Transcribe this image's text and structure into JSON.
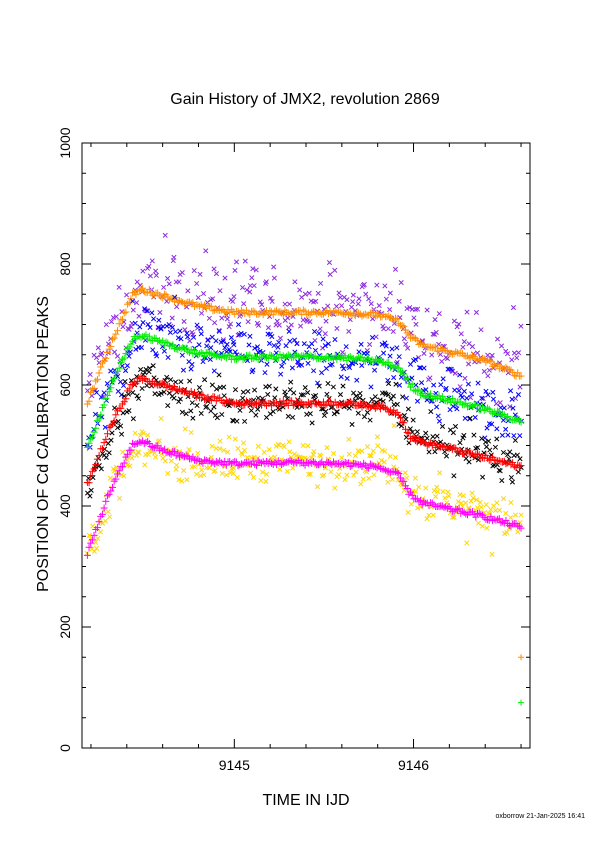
{
  "chart_data": {
    "type": "scatter",
    "title": "Gain History of JMX2, revolution 2869",
    "xlabel": "TIME IN IJD",
    "ylabel": "POSITION OF Cd CALIBRATION PEAKS",
    "xlim": [
      9144.15,
      9146.65
    ],
    "ylim": [
      0,
      1000
    ],
    "xticks": [
      "9145",
      "9146"
    ],
    "xtick_values": [
      9145,
      9146
    ],
    "yticks": [
      "0",
      "200",
      "400",
      "600",
      "800",
      "1000"
    ],
    "ytick_values": [
      0,
      200,
      400,
      600,
      800,
      1000
    ],
    "grid": false,
    "legend": "none",
    "series": [
      {
        "color": "#8a2be2",
        "marker": "x",
        "scatter": 62,
        "x": [
          9144.18,
          9144.35,
          9144.5,
          9144.8,
          9145.2,
          9145.6,
          9145.9,
          9145.98,
          9146.05,
          9146.2,
          9146.4,
          9146.6
        ],
        "values": [
          585,
          690,
          765,
          740,
          725,
          725,
          720,
          705,
          665,
          655,
          640,
          625
        ]
      },
      {
        "color": "#ff8c00",
        "marker": "+",
        "scatter": 4,
        "x": [
          9144.18,
          9144.3,
          9144.43,
          9144.48,
          9144.6,
          9144.8,
          9145.0,
          9145.3,
          9145.6,
          9145.8,
          9145.92,
          9145.98,
          9146.05,
          9146.2,
          9146.4,
          9146.6
        ],
        "values": [
          570,
          660,
          748,
          758,
          748,
          730,
          720,
          720,
          720,
          716,
          705,
          680,
          665,
          655,
          640,
          615
        ]
      },
      {
        "color": "#0000ff",
        "marker": "x",
        "scatter": 42,
        "x": [
          9144.18,
          9144.35,
          9144.5,
          9144.8,
          9145.2,
          9145.6,
          9145.9,
          9145.98,
          9146.05,
          9146.2,
          9146.4,
          9146.6
        ],
        "values": [
          510,
          620,
          690,
          660,
          650,
          645,
          640,
          620,
          590,
          585,
          565,
          545
        ]
      },
      {
        "color": "#00ee00",
        "marker": "+",
        "scatter": 4,
        "x": [
          9144.18,
          9144.3,
          9144.43,
          9144.48,
          9144.6,
          9144.8,
          9145.0,
          9145.3,
          9145.6,
          9145.8,
          9145.92,
          9145.98,
          9146.05,
          9146.2,
          9146.4,
          9146.6
        ],
        "values": [
          495,
          590,
          675,
          682,
          670,
          652,
          645,
          647,
          645,
          640,
          628,
          600,
          585,
          575,
          560,
          540
        ]
      },
      {
        "color": "#000000",
        "marker": "x",
        "scatter": 32,
        "x": [
          9144.18,
          9144.35,
          9144.5,
          9144.8,
          9145.2,
          9145.6,
          9145.9,
          9145.98,
          9146.05,
          9146.2,
          9146.4,
          9146.6
        ],
        "values": [
          430,
          550,
          610,
          575,
          570,
          572,
          568,
          530,
          510,
          505,
          485,
          470
        ]
      },
      {
        "color": "#ff0000",
        "marker": "+",
        "scatter": 4,
        "x": [
          9144.18,
          9144.3,
          9144.43,
          9144.48,
          9144.6,
          9144.8,
          9145.0,
          9145.3,
          9145.6,
          9145.8,
          9145.92,
          9145.98,
          9146.05,
          9146.2,
          9146.4,
          9146.6
        ],
        "values": [
          435,
          525,
          602,
          610,
          600,
          582,
          570,
          570,
          570,
          565,
          553,
          515,
          505,
          495,
          480,
          465
        ]
      },
      {
        "color": "#ffd700",
        "marker": "x",
        "scatter": 38,
        "x": [
          9144.18,
          9144.35,
          9144.5,
          9144.8,
          9145.2,
          9145.6,
          9145.9,
          9145.98,
          9146.05,
          9146.2,
          9146.4,
          9146.6
        ],
        "values": [
          330,
          450,
          500,
          475,
          475,
          480,
          470,
          430,
          410,
          405,
          390,
          375
        ]
      },
      {
        "color": "#ff00ff",
        "marker": "+",
        "scatter": 4,
        "x": [
          9144.18,
          9144.3,
          9144.43,
          9144.48,
          9144.6,
          9144.8,
          9145.0,
          9145.3,
          9145.6,
          9145.8,
          9145.92,
          9145.98,
          9146.05,
          9146.2,
          9146.4,
          9146.6
        ],
        "values": [
          320,
          420,
          500,
          508,
          492,
          475,
          470,
          472,
          470,
          465,
          450,
          420,
          405,
          395,
          382,
          365
        ]
      }
    ],
    "outliers": [
      {
        "color": "#ff8c00",
        "marker": "+",
        "x": 9146.6,
        "y": 150
      },
      {
        "color": "#00ee00",
        "marker": "+",
        "x": 9146.6,
        "y": 75
      }
    ]
  },
  "footer": "oxborrow 21-Jan-2025 16:41"
}
